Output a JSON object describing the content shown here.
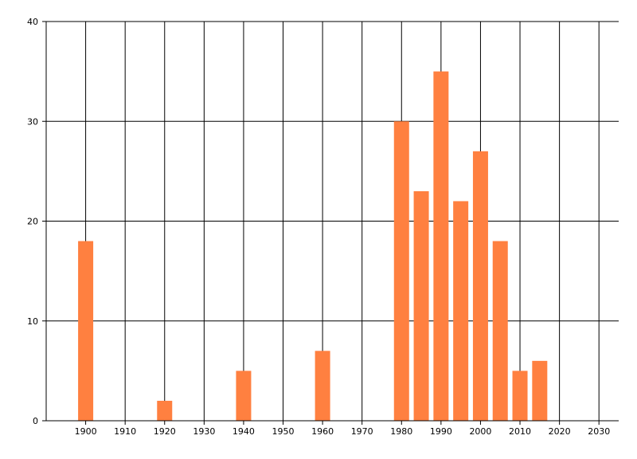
{
  "chart_data": {
    "type": "bar",
    "title": "",
    "xlabel": "",
    "ylabel": "",
    "x": [
      1900,
      1920,
      1940,
      1960,
      1980,
      1985,
      1990,
      1995,
      2000,
      2005,
      2010,
      2015
    ],
    "values": [
      18,
      2,
      5,
      7,
      30,
      23,
      35,
      22,
      27,
      18,
      5,
      6
    ],
    "xlim": [
      1890,
      2035
    ],
    "ylim": [
      0,
      40
    ],
    "xticks": [
      1900,
      1910,
      1920,
      1930,
      1940,
      1950,
      1960,
      1970,
      1980,
      1990,
      2000,
      2010,
      2020,
      2030
    ],
    "yticks": [
      0,
      10,
      20,
      30,
      40
    ],
    "bar_color": "#ff8040",
    "grid": true,
    "legend": "none"
  }
}
